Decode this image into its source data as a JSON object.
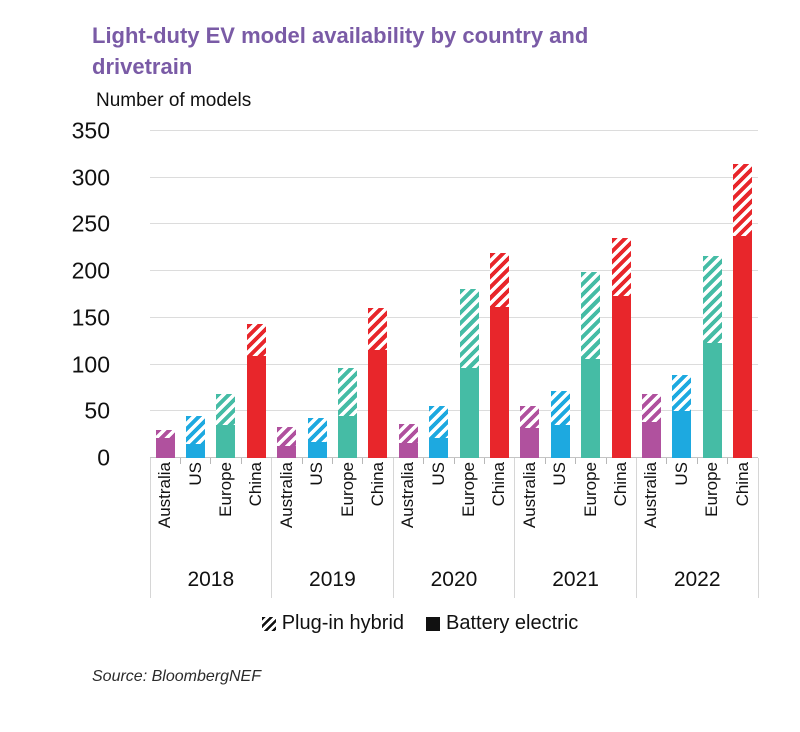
{
  "title": "Light-duty EV model availability by country and drivetrain",
  "y_axis_title": "Number of models",
  "source": "Source: BloombergNEF",
  "legend": [
    {
      "label": "Plug-in hybrid",
      "swatch": "hatched"
    },
    {
      "label": "Battery electric",
      "swatch": "solid"
    }
  ],
  "colors": {
    "title": "#7a5ba6",
    "gridline": "#dcdcdc",
    "baseline": "#c4c4c4",
    "separator": "#d6d6d6",
    "australia": "#b0519e",
    "us": "#1da9e0",
    "europe": "#45bca5",
    "china": "#e8262b"
  },
  "chart_data": {
    "type": "bar",
    "stacked": true,
    "title": "Light-duty EV model availability by country and drivetrain",
    "ylabel": "Number of models",
    "xlabel": "",
    "ylim": [
      0,
      350
    ],
    "yticks": [
      0,
      50,
      100,
      150,
      200,
      250,
      300,
      350
    ],
    "grid": "horizontal",
    "legend_position": "bottom",
    "series_names": [
      "Battery electric",
      "Plug-in hybrid"
    ],
    "pattern_note": "Battery electric = solid fill, Plug-in hybrid = diagonal hatch",
    "country_color_keys": {
      "Australia": "australia",
      "US": "us",
      "Europe": "europe",
      "China": "china"
    },
    "groups": [
      {
        "year": "2018",
        "bars": [
          {
            "country": "Australia",
            "battery_electric": 21,
            "plug_in_hybrid": 9
          },
          {
            "country": "US",
            "battery_electric": 15,
            "plug_in_hybrid": 30
          },
          {
            "country": "Europe",
            "battery_electric": 35,
            "plug_in_hybrid": 34
          },
          {
            "country": "China",
            "battery_electric": 109,
            "plug_in_hybrid": 34
          }
        ]
      },
      {
        "year": "2019",
        "bars": [
          {
            "country": "Australia",
            "battery_electric": 13,
            "plug_in_hybrid": 20
          },
          {
            "country": "US",
            "battery_electric": 17,
            "plug_in_hybrid": 26
          },
          {
            "country": "Europe",
            "battery_electric": 45,
            "plug_in_hybrid": 51
          },
          {
            "country": "China",
            "battery_electric": 116,
            "plug_in_hybrid": 45
          }
        ]
      },
      {
        "year": "2020",
        "bars": [
          {
            "country": "Australia",
            "battery_electric": 16,
            "plug_in_hybrid": 20
          },
          {
            "country": "US",
            "battery_electric": 21,
            "plug_in_hybrid": 35
          },
          {
            "country": "Europe",
            "battery_electric": 96,
            "plug_in_hybrid": 85
          },
          {
            "country": "China",
            "battery_electric": 162,
            "plug_in_hybrid": 57
          }
        ]
      },
      {
        "year": "2021",
        "bars": [
          {
            "country": "Australia",
            "battery_electric": 32,
            "plug_in_hybrid": 24
          },
          {
            "country": "US",
            "battery_electric": 35,
            "plug_in_hybrid": 37
          },
          {
            "country": "Europe",
            "battery_electric": 106,
            "plug_in_hybrid": 93
          },
          {
            "country": "China",
            "battery_electric": 173,
            "plug_in_hybrid": 63
          }
        ]
      },
      {
        "year": "2022",
        "bars": [
          {
            "country": "Australia",
            "battery_electric": 39,
            "plug_in_hybrid": 30
          },
          {
            "country": "US",
            "battery_electric": 50,
            "plug_in_hybrid": 39
          },
          {
            "country": "Europe",
            "battery_electric": 123,
            "plug_in_hybrid": 93
          },
          {
            "country": "China",
            "battery_electric": 238,
            "plug_in_hybrid": 77
          }
        ]
      }
    ]
  }
}
